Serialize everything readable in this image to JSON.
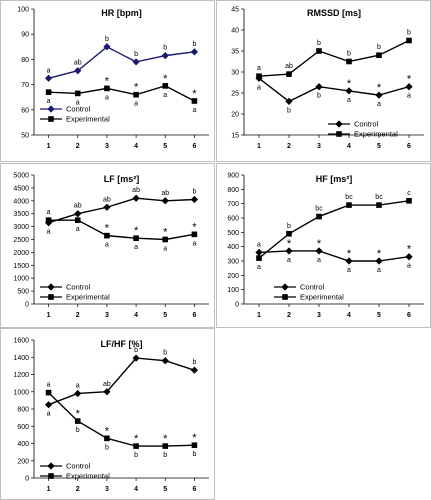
{
  "chart_data": [
    {
      "type": "line",
      "title": "HR [bpm]",
      "x": [
        1,
        2,
        3,
        4,
        5,
        6
      ],
      "ylim": [
        50,
        100
      ],
      "yticks": [
        50,
        60,
        70,
        80,
        90,
        100
      ],
      "series": [
        {
          "name": "Control",
          "marker": "diamond",
          "color": "#1a1a6e",
          "values": [
            72.5,
            75.5,
            85,
            79,
            81.5,
            83
          ],
          "labels": [
            "a",
            "ab",
            "b",
            "b",
            "b",
            "b"
          ]
        },
        {
          "name": "Experimental",
          "marker": "square",
          "color": "#000000",
          "values": [
            67,
            66.5,
            68.5,
            66,
            69.5,
            63.5
          ],
          "labels": [
            "a",
            "a",
            "a",
            "a",
            "a",
            "a"
          ],
          "stars": [
            false,
            false,
            true,
            true,
            true,
            true
          ]
        }
      ],
      "legend": "inside-bottom-left"
    },
    {
      "type": "line",
      "title": "RMSSD [ms]",
      "x": [
        1,
        2,
        3,
        4,
        5,
        6
      ],
      "ylim": [
        15,
        45
      ],
      "yticks": [
        15,
        20,
        25,
        30,
        35,
        40,
        45
      ],
      "series": [
        {
          "name": "Control",
          "marker": "diamond",
          "color": "#000000",
          "values": [
            28.5,
            23,
            26.5,
            25.5,
            24.5,
            26.5
          ],
          "labels": [
            "a",
            "b",
            "b",
            "a",
            "a",
            "a"
          ],
          "stars": [
            false,
            false,
            false,
            true,
            true,
            true
          ]
        },
        {
          "name": "Experimental",
          "marker": "square",
          "color": "#000000",
          "values": [
            29,
            29.5,
            35,
            32.5,
            34,
            37.5
          ],
          "labels": [
            "a",
            "ab",
            "b",
            "b",
            "b",
            "b"
          ]
        }
      ],
      "legend": "inside-bottom-right"
    },
    {
      "type": "line",
      "title": "LF [ms²]",
      "x": [
        1,
        2,
        3,
        4,
        5,
        6
      ],
      "ylim": [
        0,
        5000
      ],
      "yticks": [
        0,
        500,
        1000,
        1500,
        2000,
        2500,
        3000,
        3500,
        4000,
        4500,
        5000
      ],
      "series": [
        {
          "name": "Control",
          "marker": "diamond",
          "color": "#000000",
          "values": [
            3150,
            3500,
            3750,
            4100,
            4000,
            4050
          ],
          "labels": [
            "a",
            "ab",
            "ab",
            "ab",
            "ab",
            "b"
          ]
        },
        {
          "name": "Experimental",
          "marker": "square",
          "color": "#000000",
          "values": [
            3250,
            3250,
            2650,
            2550,
            2500,
            2700
          ],
          "labels": [
            "a",
            "a",
            "a",
            "a",
            "a",
            "a"
          ],
          "stars": [
            false,
            false,
            true,
            true,
            true,
            true
          ]
        }
      ],
      "legend": "inside-bottom-left"
    },
    {
      "type": "line",
      "title": "HF [ms²]",
      "x": [
        1,
        2,
        3,
        4,
        5,
        6
      ],
      "ylim": [
        0,
        900
      ],
      "yticks": [
        0,
        100,
        200,
        300,
        400,
        500,
        600,
        700,
        800,
        900
      ],
      "series": [
        {
          "name": "Control",
          "marker": "diamond",
          "color": "#000000",
          "values": [
            360,
            370,
            370,
            300,
            300,
            330
          ],
          "labels": [
            "a",
            "a",
            "a",
            "a",
            "a",
            "a"
          ],
          "stars": [
            false,
            true,
            true,
            true,
            true,
            true
          ]
        },
        {
          "name": "Experimental",
          "marker": "square",
          "color": "#000000",
          "values": [
            320,
            490,
            610,
            690,
            690,
            720
          ],
          "labels": [
            "a",
            "b",
            "bc",
            "bc",
            "bc",
            "c"
          ]
        }
      ],
      "legend": "inside-bottom-left"
    },
    {
      "type": "line",
      "title": "LF/HF [%]",
      "x": [
        1,
        2,
        3,
        4,
        5,
        6
      ],
      "ylim": [
        0,
        1600
      ],
      "yticks": [
        0,
        200,
        400,
        600,
        800,
        1000,
        1200,
        1400,
        1600
      ],
      "series": [
        {
          "name": "Control",
          "marker": "diamond",
          "color": "#000000",
          "values": [
            850,
            980,
            1000,
            1390,
            1360,
            1250
          ],
          "labels": [
            "a",
            "a",
            "ab",
            "b",
            "b",
            "b"
          ]
        },
        {
          "name": "Experimental",
          "marker": "square",
          "color": "#000000",
          "values": [
            990,
            660,
            460,
            370,
            370,
            380
          ],
          "labels": [
            "a",
            "b",
            "b",
            "b",
            "b",
            "b"
          ],
          "stars": [
            false,
            true,
            true,
            true,
            true,
            true
          ]
        }
      ],
      "legend": "inside-bottom-left"
    }
  ]
}
